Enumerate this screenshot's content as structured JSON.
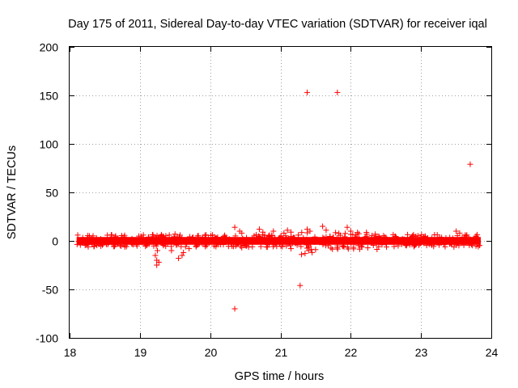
{
  "chart_data": {
    "type": "scatter",
    "title": "Day 175 of 2011, Sidereal Day-to-day VTEC variation (SDTVAR) for receiver iqal",
    "xlabel": "GPS time / hours",
    "ylabel": "SDTVAR / TECUs",
    "xlim": [
      18,
      24
    ],
    "ylim": [
      -100,
      200
    ],
    "xticks": [
      "18",
      "19",
      "20",
      "21",
      "22",
      "23",
      "24"
    ],
    "yticks": [
      "-100",
      "-50",
      "0",
      "50",
      "100",
      "150",
      "200"
    ],
    "grid": true,
    "marker": "+",
    "point_color": "#ff0000",
    "band_x_range": [
      18.1,
      23.85
    ],
    "band_half_width": 4,
    "points": [
      {
        "x": 21.38,
        "y": 153
      },
      {
        "x": 21.81,
        "y": 153
      },
      {
        "x": 23.7,
        "y": 79
      },
      {
        "x": 21.28,
        "y": -46
      },
      {
        "x": 20.35,
        "y": -70
      },
      {
        "x": 19.24,
        "y": -25
      },
      {
        "x": 19.24,
        "y": -20
      },
      {
        "x": 19.27,
        "y": -22
      },
      {
        "x": 19.22,
        "y": -15
      },
      {
        "x": 19.25,
        "y": -10
      },
      {
        "x": 19.55,
        "y": -18
      },
      {
        "x": 19.6,
        "y": -15
      },
      {
        "x": 19.62,
        "y": -12
      },
      {
        "x": 19.45,
        "y": -10
      },
      {
        "x": 19.7,
        "y": -8
      },
      {
        "x": 19.8,
        "y": -6
      },
      {
        "x": 19.95,
        "y": -5
      },
      {
        "x": 20.35,
        "y": 14
      },
      {
        "x": 20.42,
        "y": 10
      },
      {
        "x": 20.45,
        "y": 8
      },
      {
        "x": 20.45,
        "y": -7
      },
      {
        "x": 20.7,
        "y": 12
      },
      {
        "x": 20.75,
        "y": 9
      },
      {
        "x": 20.9,
        "y": 10
      },
      {
        "x": 21.05,
        "y": 8
      },
      {
        "x": 21.1,
        "y": 11
      },
      {
        "x": 21.15,
        "y": 9
      },
      {
        "x": 21.38,
        "y": 12
      },
      {
        "x": 21.42,
        "y": 10
      },
      {
        "x": 21.3,
        "y": -14
      },
      {
        "x": 21.35,
        "y": -13
      },
      {
        "x": 21.4,
        "y": -10
      },
      {
        "x": 21.45,
        "y": -12
      },
      {
        "x": 21.5,
        "y": -9
      },
      {
        "x": 21.6,
        "y": 15
      },
      {
        "x": 21.65,
        "y": 11
      },
      {
        "x": 21.95,
        "y": 14
      },
      {
        "x": 22.0,
        "y": 10
      },
      {
        "x": 23.5,
        "y": 10
      },
      {
        "x": 23.55,
        "y": 8
      },
      {
        "x": 21.15,
        "y": -8
      },
      {
        "x": 20.6,
        "y": -6
      },
      {
        "x": 19.05,
        "y": 6
      },
      {
        "x": 18.6,
        "y": 6
      },
      {
        "x": 19.5,
        "y": 7
      }
    ]
  }
}
